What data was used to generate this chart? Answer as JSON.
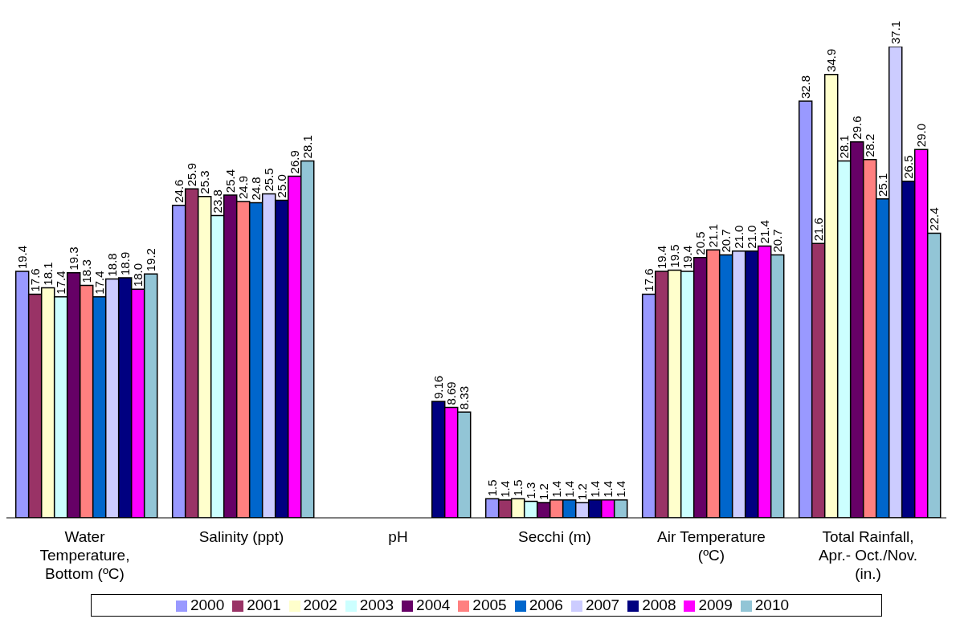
{
  "chart_data": {
    "type": "bar",
    "categories": [
      "Water Temperature, Bottom (ºC)",
      "Salinity (ppt)",
      "pH",
      "Secchi (m)",
      "Air Temperature (ºC)",
      "Total Rainfall, Apr.- Oct./Nov. (in.)"
    ],
    "series": [
      {
        "name": "2000",
        "color": "#9999ff",
        "values": [
          19.4,
          24.6,
          null,
          1.5,
          17.6,
          32.8
        ],
        "value_labels": [
          "19.4",
          "24.6",
          null,
          "1.5",
          "17.6",
          "32.8"
        ]
      },
      {
        "name": "2001",
        "color": "#993366",
        "values": [
          17.6,
          25.9,
          null,
          1.4,
          19.4,
          21.6
        ],
        "value_labels": [
          "17.6",
          "25.9",
          null,
          "1.4",
          "19.4",
          "21.6"
        ]
      },
      {
        "name": "2002",
        "color": "#ffffcc",
        "values": [
          18.1,
          25.3,
          null,
          1.5,
          19.5,
          34.9
        ],
        "value_labels": [
          "18.1",
          "25.3",
          null,
          "1.5",
          "19.5",
          "34.9"
        ]
      },
      {
        "name": "2003",
        "color": "#ccffff",
        "values": [
          17.4,
          23.8,
          null,
          1.3,
          19.4,
          28.1
        ],
        "value_labels": [
          "17.4",
          "23.8",
          null,
          "1.3",
          "19.4",
          "28.1"
        ]
      },
      {
        "name": "2004",
        "color": "#660066",
        "values": [
          19.3,
          25.4,
          null,
          1.2,
          20.5,
          29.6
        ],
        "value_labels": [
          "19.3",
          "25.4",
          null,
          "1.2",
          "20.5",
          "29.6"
        ]
      },
      {
        "name": "2005",
        "color": "#ff8080",
        "values": [
          18.3,
          24.9,
          null,
          1.4,
          21.1,
          28.2
        ],
        "value_labels": [
          "18.3",
          "24.9",
          null,
          "1.4",
          "21.1",
          "28.2"
        ]
      },
      {
        "name": "2006",
        "color": "#0066cc",
        "values": [
          17.4,
          24.8,
          null,
          1.4,
          20.7,
          25.1
        ],
        "value_labels": [
          "17.4",
          "24.8",
          null,
          "1.4",
          "20.7",
          "25.1"
        ]
      },
      {
        "name": "2007",
        "color": "#ccccff",
        "values": [
          18.8,
          25.5,
          null,
          1.2,
          21.0,
          37.1
        ],
        "value_labels": [
          "18.8",
          "25.5",
          null,
          "1.2",
          "21.0",
          "37.1"
        ]
      },
      {
        "name": "2008",
        "color": "#000080",
        "values": [
          18.9,
          25.0,
          9.16,
          1.4,
          21.0,
          26.5
        ],
        "value_labels": [
          "18.9",
          "25.0",
          "9.16",
          "1.4",
          "21.0",
          "26.5"
        ]
      },
      {
        "name": "2009",
        "color": "#ff00ff",
        "values": [
          18.0,
          26.9,
          8.69,
          1.4,
          21.4,
          29.0
        ],
        "value_labels": [
          "18.0",
          "26.9",
          "8.69",
          "1.4",
          "21.4",
          "29.0"
        ]
      },
      {
        "name": "2010",
        "color": "#92c5d6",
        "values": [
          19.2,
          28.1,
          8.33,
          1.4,
          20.7,
          22.4
        ],
        "value_labels": [
          "19.2",
          "28.1",
          "8.33",
          "1.4",
          "20.7",
          "22.4"
        ]
      }
    ],
    "legend": "bottom",
    "grid": false
  }
}
